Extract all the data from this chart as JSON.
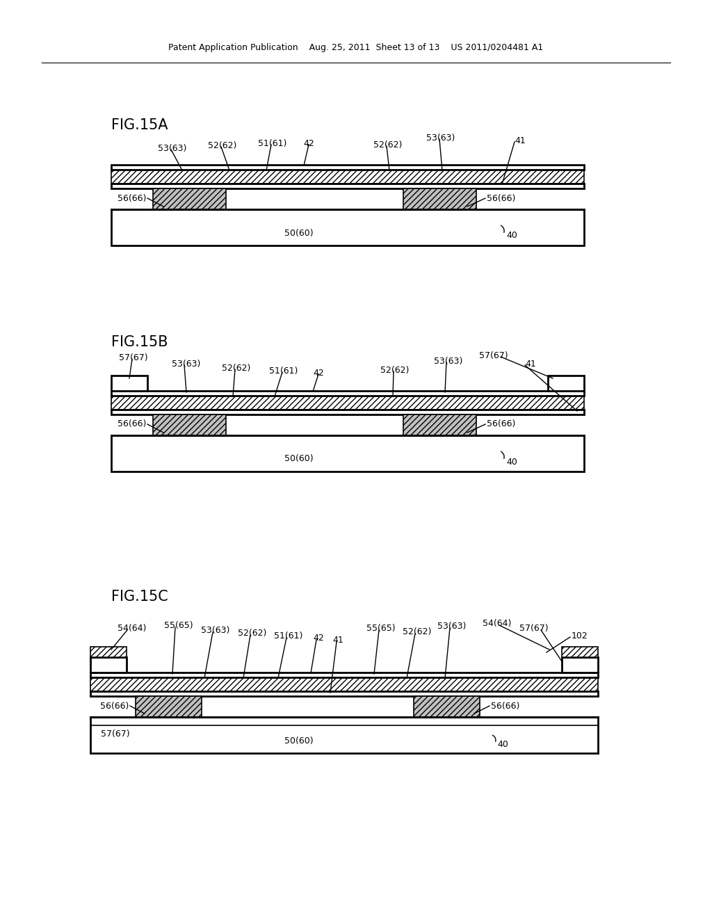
{
  "bg_color": "#ffffff",
  "header": "Patent Application Publication    Aug. 25, 2011  Sheet 13 of 13    US 2011/0204481 A1",
  "fig_labels": [
    "FIG.15A",
    "FIG.15B",
    "FIG.15C"
  ],
  "lw_thick": 2.0,
  "lw_thin": 1.2,
  "lw_leader": 1.0,
  "label_fs": 9.0,
  "fig_label_fs": 15,
  "header_fs": 9
}
